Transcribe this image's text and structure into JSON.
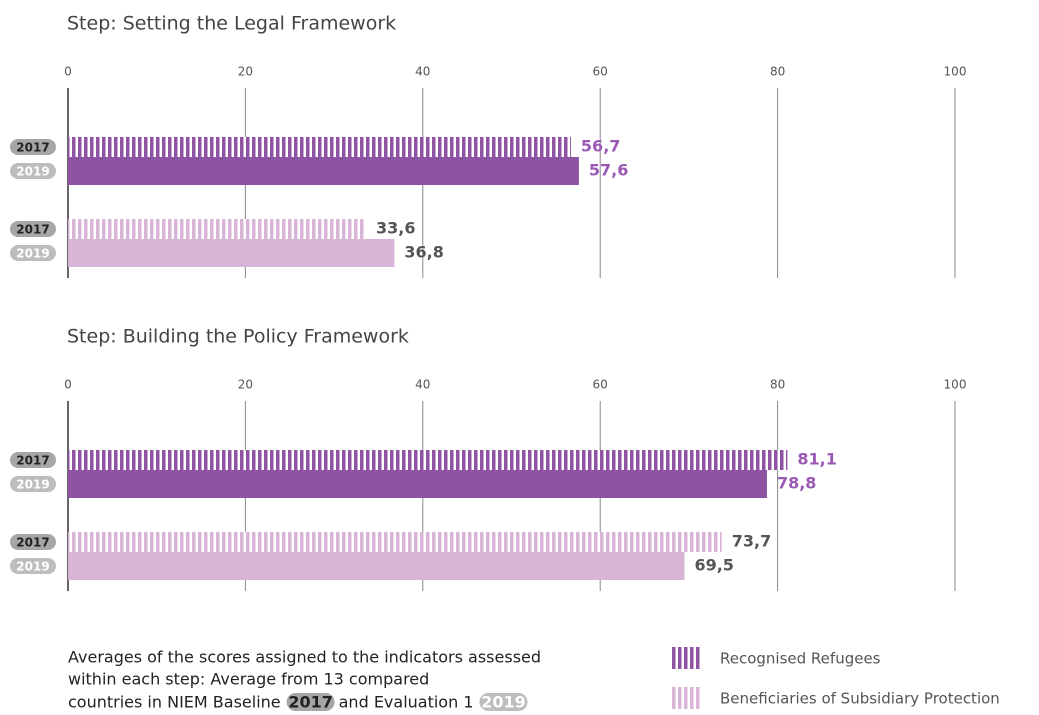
{
  "chart_data": [
    {
      "type": "bar",
      "orientation": "horizontal",
      "title": "Step: Setting the Legal Framework",
      "categories": [
        "2017",
        "2019"
      ],
      "category_styles": [
        "striped",
        "solid"
      ],
      "series": [
        {
          "name": "Recognised Refugees",
          "color": "#8e54a3",
          "label_color": "#9b59b6",
          "values": [
            56.7,
            57.6
          ],
          "value_labels": [
            "56,7",
            "57,6"
          ]
        },
        {
          "name": "Beneficiaries of Subsidiary Protection",
          "color": "#d8b4d6",
          "label_color": "#555555",
          "values": [
            33.6,
            36.8
          ],
          "value_labels": [
            "33,6",
            "36,8"
          ]
        }
      ],
      "xlim": [
        0,
        100
      ],
      "xticks": [
        0,
        20,
        40,
        60,
        80,
        100
      ],
      "grid": true
    },
    {
      "type": "bar",
      "orientation": "horizontal",
      "title": "Step: Building the Policy Framework",
      "categories": [
        "2017",
        "2019"
      ],
      "category_styles": [
        "striped",
        "solid"
      ],
      "series": [
        {
          "name": "Recognised Refugees",
          "color": "#8e54a3",
          "label_color": "#9b59b6",
          "values": [
            81.1,
            78.8
          ],
          "value_labels": [
            "81,1",
            "78,8"
          ]
        },
        {
          "name": "Beneficiaries of Subsidiary Protection",
          "color": "#d8b4d6",
          "label_color": "#555555",
          "values": [
            73.7,
            69.5
          ],
          "value_labels": [
            "73,7",
            "69,5"
          ]
        }
      ],
      "xlim": [
        0,
        100
      ],
      "xticks": [
        0,
        20,
        40,
        60,
        80,
        100
      ],
      "grid": true
    }
  ],
  "note": {
    "lines": [
      "Averages of the scores assigned to the indicators assessed",
      "within each step: Average from 13 compared"
    ],
    "last_line": [
      "countries in NIEM Baseline",
      "2017",
      "and Evaluation 1",
      "2019"
    ]
  }
}
